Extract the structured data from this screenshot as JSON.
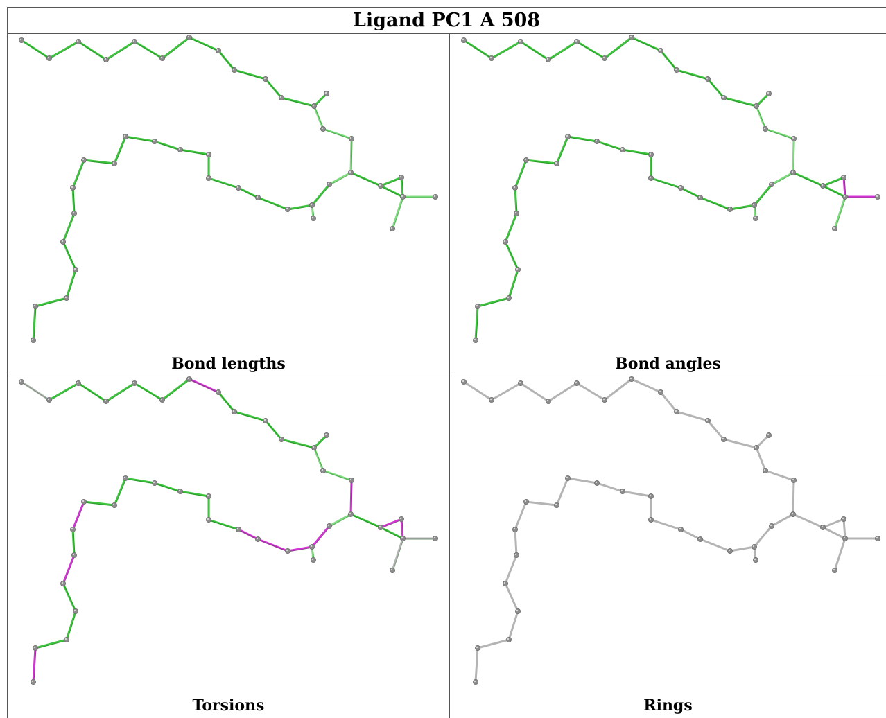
{
  "title": "Ligand PC1 A 508",
  "panels": [
    {
      "caption": "Bond lengths",
      "mode": "lengths"
    },
    {
      "caption": "Bond angles",
      "mode": "angles"
    },
    {
      "caption": "Torsions",
      "mode": "torsions"
    },
    {
      "caption": "Rings",
      "mode": "rings"
    }
  ],
  "colors": {
    "good_green": "#3fc43f",
    "light_green": "#7fdc7f",
    "outlier_magenta": "#d633d6",
    "neutral_gray": "#b4b4b4",
    "atom_gray": "#8c8c8c"
  }
}
